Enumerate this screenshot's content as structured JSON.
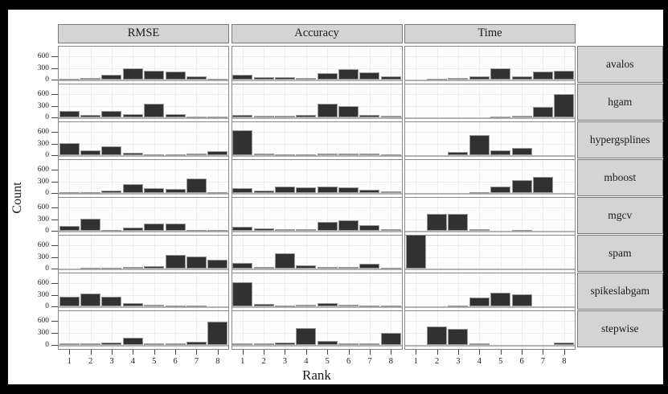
{
  "axes": {
    "x_title": "Rank",
    "y_title": "Count",
    "y_tick_labels": [
      "0",
      "300",
      "600"
    ],
    "x_tick_labels": [
      "1",
      "2",
      "3",
      "4",
      "5",
      "6",
      "7",
      "8"
    ]
  },
  "chart_data": {
    "type": "bar",
    "layout": "trellis-grid",
    "title": "",
    "xlabel": "Rank",
    "ylabel": "Count",
    "columns": [
      "RMSE",
      "Accuracy",
      "Time"
    ],
    "rows": [
      "avalos",
      "hgam",
      "hypergsplines",
      "mboost",
      "mgcv",
      "spam",
      "spikeslabgam",
      "stepwise"
    ],
    "x": [
      1,
      2,
      3,
      4,
      5,
      6,
      7,
      8
    ],
    "ylim": [
      0,
      900
    ],
    "yticks": [
      0,
      300,
      600
    ],
    "grid": true,
    "legend": "none",
    "panels": [
      {
        "method": "avalos",
        "RMSE": [
          20,
          50,
          115,
          280,
          225,
          210,
          85,
          10
        ],
        "Accuracy": [
          130,
          70,
          60,
          40,
          165,
          265,
          185,
          85
        ],
        "Time": [
          0,
          10,
          45,
          90,
          290,
          75,
          200,
          235
        ]
      },
      {
        "method": "hgam",
        "RMSE": [
          170,
          65,
          175,
          75,
          350,
          80,
          30,
          20
        ],
        "Accuracy": [
          65,
          50,
          45,
          65,
          355,
          290,
          65,
          45
        ],
        "Time": [
          0,
          0,
          0,
          0,
          15,
          40,
          280,
          610
        ]
      },
      {
        "method": "hypergsplines",
        "RMSE": [
          310,
          120,
          235,
          65,
          30,
          25,
          45,
          105
        ],
        "Accuracy": [
          650,
          55,
          15,
          30,
          35,
          40,
          35,
          15
        ],
        "Time": [
          0,
          0,
          80,
          520,
          130,
          180,
          0,
          0
        ]
      },
      {
        "method": "mboost",
        "RMSE": [
          20,
          30,
          60,
          225,
          125,
          110,
          380,
          15
        ],
        "Accuracy": [
          120,
          65,
          170,
          140,
          165,
          160,
          95,
          55
        ],
        "Time": [
          0,
          0,
          0,
          10,
          165,
          345,
          425,
          0
        ]
      },
      {
        "method": "mgcv",
        "RMSE": [
          130,
          310,
          35,
          90,
          185,
          200,
          35,
          5
        ],
        "Accuracy": [
          110,
          75,
          50,
          55,
          225,
          280,
          150,
          55
        ],
        "Time": [
          0,
          450,
          430,
          55,
          0,
          20,
          0,
          0
        ]
      },
      {
        "method": "spam",
        "RMSE": [
          0,
          5,
          10,
          40,
          70,
          360,
          320,
          245
        ],
        "Accuracy": [
          150,
          55,
          400,
          95,
          45,
          60,
          135,
          25
        ],
        "Time": [
          910,
          0,
          0,
          0,
          0,
          0,
          0,
          0
        ]
      },
      {
        "method": "spikeslabgam",
        "RMSE": [
          255,
          340,
          255,
          85,
          45,
          10,
          5,
          0
        ],
        "Accuracy": [
          620,
          70,
          35,
          50,
          90,
          60,
          25,
          10
        ],
        "Time": [
          0,
          0,
          25,
          245,
          355,
          325,
          0,
          0
        ]
      },
      {
        "method": "stepwise",
        "RMSE": [
          20,
          20,
          45,
          185,
          15,
          20,
          80,
          580
        ],
        "Accuracy": [
          35,
          20,
          60,
          420,
          90,
          20,
          35,
          300
        ],
        "Time": [
          0,
          465,
          400,
          35,
          0,
          0,
          0,
          55
        ]
      }
    ]
  },
  "style": {
    "background": "#000000",
    "plot_background": "#ffffff",
    "strip_background": "#d4d4d4",
    "bar_color": "#313131",
    "bar_border": "#9a9a9a",
    "panel_border": "#888888",
    "gridline": "#ededed"
  }
}
